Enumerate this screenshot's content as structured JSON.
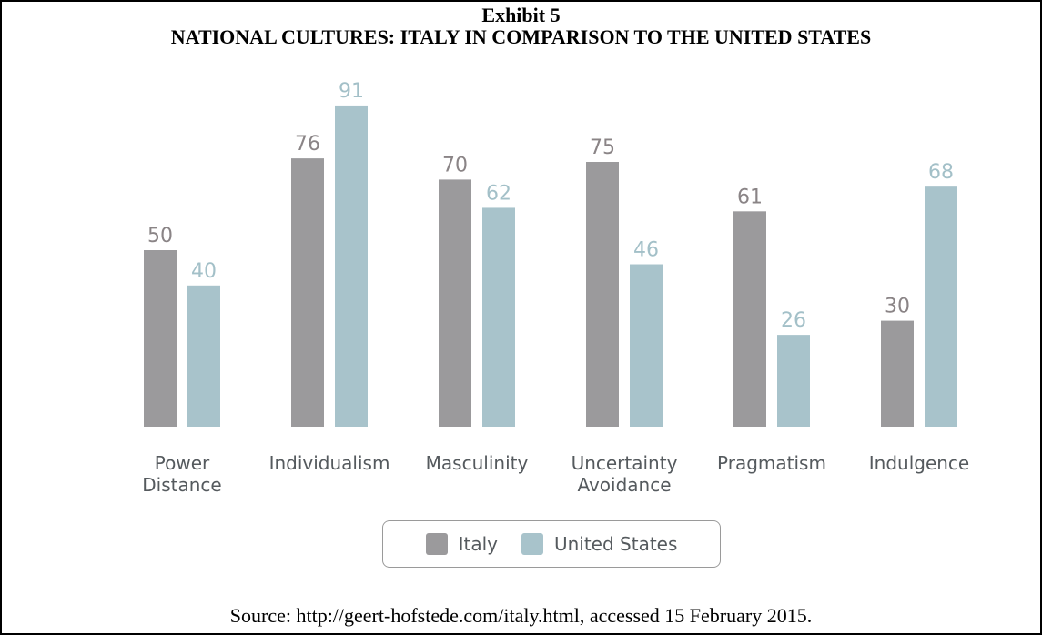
{
  "exhibit_label": "Exhibit 5",
  "exhibit_title": "NATIONAL CULTURES: ITALY IN COMPARISON TO THE UNITED STATES",
  "source": "Source: http://geert-hofstede.com/italy.html, accessed 15 February 2015.",
  "chart_data": {
    "type": "bar",
    "title": "",
    "xlabel": "",
    "ylabel": "",
    "ylim": [
      0,
      100
    ],
    "grid": false,
    "legend_position": "bottom",
    "categories": [
      [
        "Power",
        "Distance"
      ],
      [
        "Individualism"
      ],
      [
        "Masculinity"
      ],
      [
        "Uncertainty",
        "Avoidance"
      ],
      [
        "Pragmatism"
      ],
      [
        "Indulgence"
      ]
    ],
    "series": [
      {
        "name": "Italy",
        "color": "#9b9a9c",
        "label_color": "#8a8486",
        "values": [
          50,
          76,
          70,
          75,
          61,
          30
        ]
      },
      {
        "name": "United States",
        "color": "#a8c3cb",
        "label_color": "#a3c0c8",
        "values": [
          40,
          91,
          62,
          46,
          26,
          68
        ]
      }
    ]
  }
}
